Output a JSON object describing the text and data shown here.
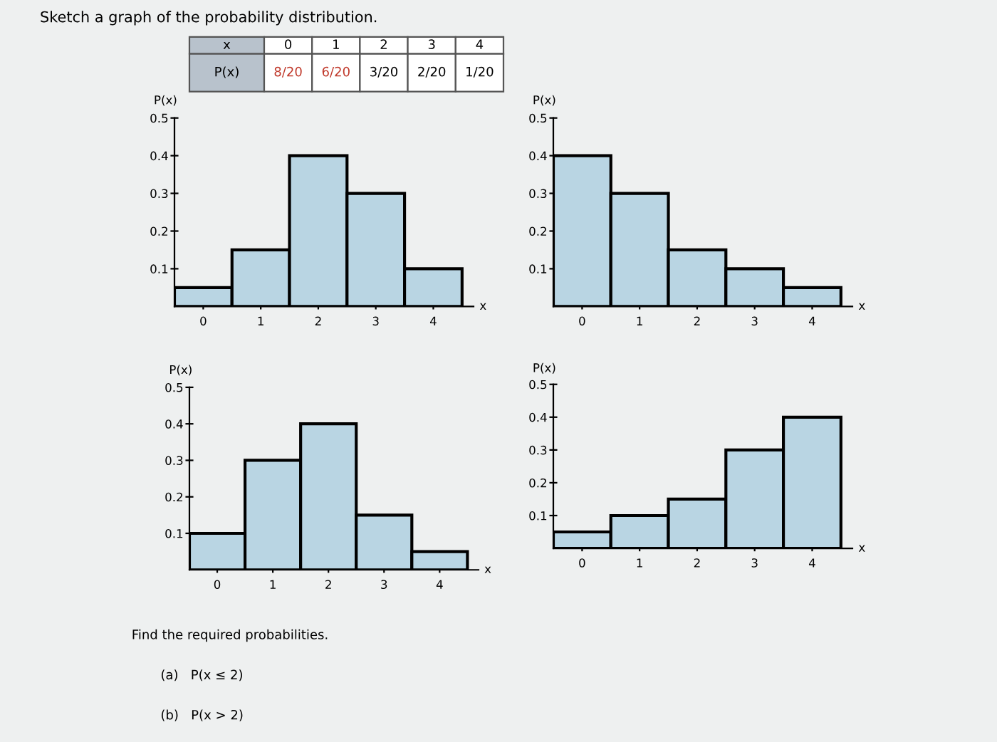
{
  "chart_data": [
    {
      "type": "bar",
      "title": "Sketch a graph of the probability distribution.",
      "annotations": [
        "x",
        "0",
        "1",
        "2",
        "3",
        "4",
        "P(x)",
        "8/20",
        "6/20",
        "3/20",
        "2/20",
        "1/20"
      ],
      "categories": [
        "0",
        "1",
        "2",
        "3",
        "4"
      ],
      "values": [
        0.05,
        0.15,
        0.4,
        0.3,
        0.1
      ],
      "color": "#b9d5e3",
      "xlabel": "x",
      "ylabel": "P(x)",
      "ylim": [
        0,
        0.5
      ],
      "yticks": [
        0.1,
        0.2,
        0.3,
        0.4,
        0.5
      ],
      "grid": false
    },
    {
      "type": "bar",
      "categories": [
        "0",
        "1",
        "2",
        "3",
        "4"
      ],
      "values": [
        0.4,
        0.3,
        0.15,
        0.1,
        0.05
      ],
      "color": "#b9d5e3",
      "xlabel": "x",
      "ylabel": "P(x)",
      "ylim": [
        0,
        0.5
      ],
      "yticks": [
        0.1,
        0.2,
        0.3,
        0.4,
        0.5
      ],
      "grid": false
    },
    {
      "type": "bar",
      "annotations": [
        "Find the required probabilities.",
        "(a)   P(x ≤ 2)",
        "(b)   P(x > 2)"
      ],
      "categories": [
        "0",
        "1",
        "2",
        "3",
        "4"
      ],
      "values": [
        0.1,
        0.3,
        0.4,
        0.15,
        0.05
      ],
      "color": "#b9d5e3",
      "xlabel": "x",
      "ylabel": "P(x)",
      "ylim": [
        0,
        0.5
      ],
      "yticks": [
        0.1,
        0.2,
        0.3,
        0.4,
        0.5
      ],
      "grid": false
    },
    {
      "type": "bar",
      "categories": [
        "0",
        "1",
        "2",
        "3",
        "4"
      ],
      "values": [
        0.05,
        0.1,
        0.15,
        0.3,
        0.4
      ],
      "color": "#b9d5e3",
      "xlabel": "x",
      "ylabel": "P(x)",
      "ylim": [
        0,
        0.5
      ],
      "yticks": [
        0.1,
        0.2,
        0.3,
        0.4,
        0.5
      ],
      "grid": false
    }
  ]
}
